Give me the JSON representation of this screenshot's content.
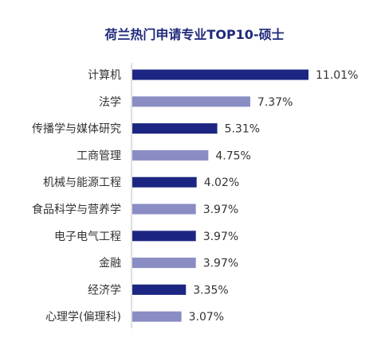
{
  "chart_data": {
    "type": "bar",
    "orientation": "horizontal",
    "title": "荷兰热门申请专业TOP10-硕士",
    "categories": [
      "计算机",
      "法学",
      "传播学与媒体研究",
      "工商管理",
      "机械与能源工程",
      "食品科学与营养学",
      "电子电气工程",
      "金融",
      "经济学",
      "心理学(偏理科)"
    ],
    "values": [
      11.01,
      7.37,
      5.31,
      4.75,
      4.02,
      3.97,
      3.97,
      3.97,
      3.35,
      3.07
    ],
    "value_labels": [
      "11.01%",
      "7.37%",
      "5.31%",
      "4.75%",
      "4.02%",
      "3.97%",
      "3.97%",
      "3.97%",
      "3.35%",
      "3.07%"
    ],
    "bar_colors": [
      "#1c2682",
      "#8a8cc4",
      "#1c2682",
      "#8a8cc4",
      "#1c2682",
      "#8a8cc4",
      "#1c2682",
      "#8a8cc4",
      "#1c2682",
      "#8a8cc4"
    ],
    "xlabel": "",
    "ylabel": "",
    "grid": false,
    "legend": "none"
  }
}
